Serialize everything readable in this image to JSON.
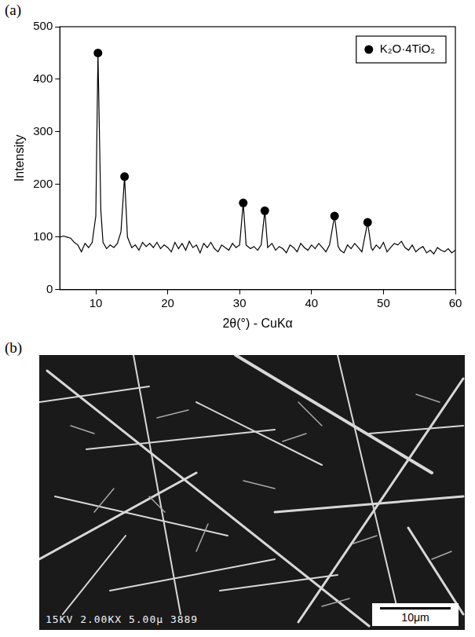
{
  "chart_data": {
    "type": "line",
    "panel": "(a)",
    "x_label": "2θ(°) - CuKα",
    "y_label": "Intensity",
    "xlim": [
      5,
      60
    ],
    "xticks": [
      10,
      20,
      30,
      40,
      50,
      60
    ],
    "ylim": [
      0,
      500
    ],
    "yticks": [
      0,
      100,
      200,
      300,
      400,
      500
    ],
    "grid": false,
    "legend": "upper right",
    "series": [
      {
        "type": "line",
        "color": "#000000",
        "x": [
          5,
          5.5,
          6,
          6.5,
          7,
          7.5,
          8,
          8.5,
          9,
          9.5,
          10,
          10.3,
          10.7,
          11,
          11.5,
          12,
          12.5,
          13,
          13.5,
          14,
          14.4,
          15,
          15.5,
          16,
          16.5,
          17,
          17.5,
          18,
          18.5,
          19,
          19.5,
          20,
          20.5,
          21,
          21.5,
          22,
          22.5,
          23,
          23.5,
          24,
          24.5,
          25,
          25.5,
          26,
          26.5,
          27,
          27.5,
          28,
          28.5,
          29,
          29.5,
          30,
          30.5,
          30.9,
          31.5,
          32,
          32.5,
          33,
          33.5,
          33.9,
          34.5,
          35,
          35.5,
          36,
          36.5,
          37,
          37.5,
          38,
          38.5,
          39,
          39.5,
          40,
          40.5,
          41,
          41.5,
          42,
          42.5,
          43.2,
          43.7,
          44,
          44.5,
          45,
          45.5,
          46,
          46.5,
          47,
          47.8,
          48.3,
          48.5,
          49,
          49.5,
          50,
          50.5,
          51,
          51.5,
          52,
          52.5,
          53,
          53.5,
          54,
          54.5,
          55,
          55.5,
          56,
          56.5,
          57,
          57.5,
          58,
          58.5,
          59,
          59.5,
          60
        ],
        "values": [
          100,
          102,
          100,
          98,
          90,
          85,
          72,
          88,
          80,
          90,
          140,
          450,
          150,
          90,
          78,
          85,
          80,
          88,
          110,
          215,
          100,
          80,
          85,
          75,
          90,
          82,
          88,
          80,
          90,
          78,
          85,
          80,
          72,
          90,
          78,
          88,
          75,
          92,
          80,
          85,
          70,
          88,
          80,
          90,
          78,
          72,
          85,
          80,
          75,
          88,
          80,
          85,
          165,
          85,
          78,
          82,
          75,
          85,
          150,
          80,
          88,
          75,
          82,
          78,
          70,
          85,
          80,
          72,
          88,
          80,
          75,
          85,
          78,
          88,
          80,
          72,
          85,
          140,
          82,
          75,
          70,
          85,
          78,
          88,
          80,
          72,
          128,
          80,
          75,
          85,
          78,
          90,
          72,
          80,
          88,
          85,
          92,
          80,
          75,
          85,
          72,
          78,
          82,
          70,
          75,
          68,
          80,
          75,
          72,
          78,
          70,
          75
        ]
      },
      {
        "type": "scatter",
        "name": "K₂O·4TiO₂",
        "color": "#000000",
        "marker": "circle",
        "x": [
          10.3,
          14,
          30.5,
          33.5,
          43.2,
          47.8
        ],
        "values": [
          450,
          215,
          165,
          150,
          140,
          128
        ]
      }
    ]
  },
  "image_panel": {
    "panel": "(b)",
    "footer_text": "15KV  2.00KX  5.00μ 3889",
    "scale_bar_label": "10μm"
  }
}
